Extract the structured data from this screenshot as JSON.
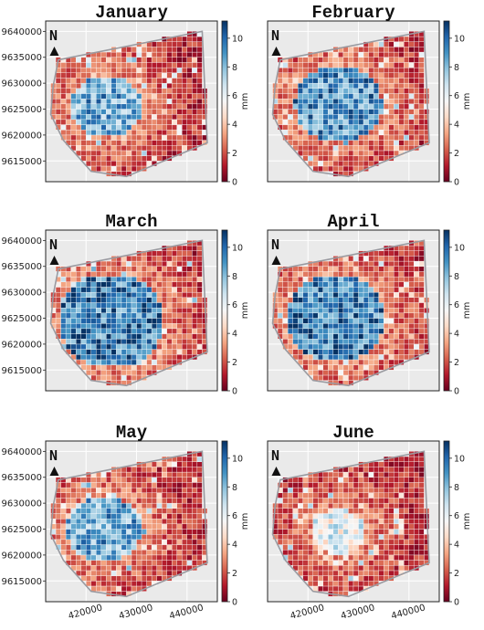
{
  "chart_data": [
    {
      "type": "heatmap",
      "title": "January",
      "x_ticks": [
        420000,
        430000,
        440000
      ],
      "y_ticks": [
        9615000,
        9620000,
        9625000,
        9630000,
        9635000,
        9640000
      ],
      "xlim": [
        412000,
        446000
      ],
      "ylim": [
        9611000,
        9642000
      ],
      "colorbar": {
        "label": "mm",
        "ticks": [
          0,
          2,
          4,
          6,
          8,
          10
        ],
        "range": [
          0,
          11.2
        ],
        "colormap": "RdBu"
      },
      "wet_core": {
        "center": [
          424000,
          9625500
        ],
        "radius_m": 6000,
        "level_mm": 8.5
      },
      "north_arrow": "N",
      "grid": true
    },
    {
      "type": "heatmap",
      "title": "February",
      "x_ticks": [
        420000,
        430000,
        440000
      ],
      "y_ticks": [
        9615000,
        9620000,
        9625000,
        9630000,
        9635000,
        9640000
      ],
      "xlim": [
        412000,
        446000
      ],
      "ylim": [
        9611000,
        9642000
      ],
      "colorbar": {
        "label": "mm",
        "ticks": [
          0,
          2,
          4,
          6,
          8,
          10
        ],
        "range": [
          0,
          11.2
        ],
        "colormap": "RdBu"
      },
      "wet_core": {
        "center": [
          426000,
          9626000
        ],
        "radius_m": 7500,
        "level_mm": 9.0
      },
      "north_arrow": "N",
      "grid": true
    },
    {
      "type": "heatmap",
      "title": "March",
      "x_ticks": [
        420000,
        430000,
        440000
      ],
      "y_ticks": [
        9615000,
        9620000,
        9625000,
        9630000,
        9635000,
        9640000
      ],
      "xlim": [
        412000,
        446000
      ],
      "ylim": [
        9611000,
        9642000
      ],
      "colorbar": {
        "label": "mm",
        "ticks": [
          0,
          2,
          4,
          6,
          8,
          10
        ],
        "range": [
          0,
          11.2
        ],
        "colormap": "RdBu"
      },
      "wet_core": {
        "center": [
          425000,
          9624500
        ],
        "radius_m": 9000,
        "level_mm": 9.5
      },
      "north_arrow": "N",
      "grid": true
    },
    {
      "type": "heatmap",
      "title": "April",
      "x_ticks": [
        420000,
        430000,
        440000
      ],
      "y_ticks": [
        9615000,
        9620000,
        9625000,
        9630000,
        9635000,
        9640000
      ],
      "xlim": [
        412000,
        446000
      ],
      "ylim": [
        9611000,
        9642000
      ],
      "colorbar": {
        "label": "mm",
        "ticks": [
          0,
          2,
          4,
          6,
          8,
          10
        ],
        "range": [
          0,
          11.2
        ],
        "colormap": "RdBu"
      },
      "wet_core": {
        "center": [
          425500,
          9625000
        ],
        "radius_m": 8500,
        "level_mm": 9.5
      },
      "north_arrow": "N",
      "grid": true
    },
    {
      "type": "heatmap",
      "title": "May",
      "x_ticks": [
        420000,
        430000,
        440000
      ],
      "y_ticks": [
        9615000,
        9620000,
        9625000,
        9630000,
        9635000,
        9640000
      ],
      "xlim": [
        412000,
        446000
      ],
      "ylim": [
        9611000,
        9642000
      ],
      "colorbar": {
        "label": "mm",
        "ticks": [
          0,
          2,
          4,
          6,
          8,
          10
        ],
        "range": [
          0,
          11.2
        ],
        "colormap": "RdBu"
      },
      "wet_core": {
        "center": [
          423500,
          9625000
        ],
        "radius_m": 6500,
        "level_mm": 8.5
      },
      "north_arrow": "N",
      "grid": true
    },
    {
      "type": "heatmap",
      "title": "June",
      "x_ticks": [
        420000,
        430000,
        440000
      ],
      "y_ticks": [
        9615000,
        9620000,
        9625000,
        9630000,
        9635000,
        9640000
      ],
      "xlim": [
        412000,
        446000
      ],
      "ylim": [
        9611000,
        9642000
      ],
      "colorbar": {
        "label": "mm",
        "ticks": [
          0,
          2,
          4,
          6,
          8,
          10
        ],
        "range": [
          0,
          11.2
        ],
        "colormap": "RdBu"
      },
      "wet_core": {
        "center": [
          426000,
          9624500
        ],
        "radius_m": 4500,
        "level_mm": 6.0
      },
      "north_arrow": "N",
      "grid": true
    }
  ],
  "basin_outline": [
    [
      414500,
      9634500
    ],
    [
      443000,
      9640000
    ],
    [
      444000,
      9618500
    ],
    [
      428000,
      9612000
    ],
    [
      421000,
      9613000
    ],
    [
      415500,
      9619000
    ],
    [
      413000,
      9624000
    ],
    [
      413500,
      9629500
    ]
  ],
  "colors": {
    "panel_bg": "#eaeaea",
    "outline": "#9a9aa0",
    "colormap_stops": [
      "#67001f",
      "#b2182b",
      "#d6604d",
      "#f4a582",
      "#fddbc7",
      "#f7f7f7",
      "#d1e5f0",
      "#92c5de",
      "#4393c3",
      "#2166ac",
      "#053061"
    ]
  }
}
